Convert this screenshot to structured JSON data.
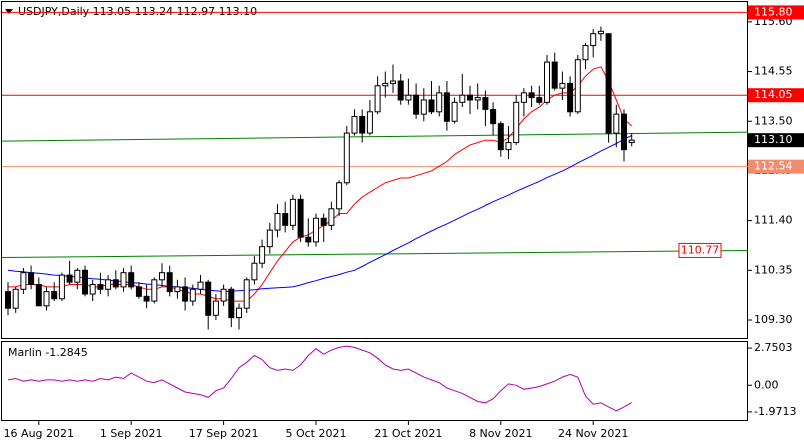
{
  "chart_data": [
    {
      "type": "candlestick",
      "title": "USDJPY,Daily  113.05 113.24 112.97 113.10",
      "categories": [
        null,
        null,
        null,
        null,
        "16 Aug 2021",
        null,
        null,
        null,
        null,
        null,
        null,
        null,
        null,
        null,
        null,
        null,
        "1 Sep 2021",
        null,
        null,
        null,
        null,
        null,
        null,
        null,
        null,
        null,
        null,
        null,
        "17 Sep 2021",
        null,
        null,
        null,
        null,
        null,
        null,
        null,
        null,
        null,
        null,
        null,
        "5 Oct 2021",
        null,
        null,
        null,
        null,
        null,
        null,
        null,
        null,
        null,
        null,
        null,
        "21 Oct 2021",
        null,
        null,
        null,
        null,
        null,
        null,
        null,
        null,
        null,
        null,
        null,
        "8 Nov 2021",
        null,
        null,
        null,
        null,
        null,
        null,
        null,
        null,
        null,
        null,
        null,
        "24 Nov 2021",
        null,
        null,
        null,
        null,
        null
      ],
      "open": [
        109.9,
        109.55,
        109.95,
        110.3,
        110.05,
        109.6,
        109.9,
        109.75,
        110.25,
        110.1,
        110.35,
        109.85,
        110.05,
        109.95,
        110.15,
        110.0,
        110.3,
        110.0,
        109.8,
        109.7,
        110.15,
        110.3,
        109.9,
        110.0,
        109.7,
        109.95,
        110.1,
        109.4,
        109.7,
        109.95,
        109.35,
        109.55,
        110.15,
        110.5,
        110.85,
        111.2,
        111.55,
        111.3,
        111.85,
        111.05,
        110.95,
        111.45,
        111.3,
        111.65,
        112.2,
        113.25,
        113.6,
        113.25,
        113.7,
        114.25,
        114.3,
        114.35,
        113.95,
        114.05,
        113.65,
        113.95,
        113.7,
        114.1,
        113.5,
        113.9,
        114.05,
        113.95,
        114.0,
        113.75,
        113.45,
        112.9,
        113.05,
        113.9,
        114.1,
        114.0,
        113.9,
        114.75,
        114.2,
        114.3,
        113.7,
        114.8,
        115.1,
        115.35,
        115.35,
        113.25,
        113.65,
        113.05
      ],
      "high": [
        110.1,
        110.0,
        110.4,
        110.45,
        110.2,
        110.0,
        110.1,
        110.3,
        110.55,
        110.4,
        110.45,
        110.15,
        110.3,
        110.25,
        110.35,
        110.4,
        110.45,
        110.1,
        110.05,
        110.2,
        110.5,
        110.45,
        110.15,
        110.2,
        110.05,
        110.25,
        110.15,
        109.85,
        110.05,
        110.0,
        109.65,
        110.2,
        110.65,
        111.0,
        111.35,
        111.75,
        111.8,
        111.95,
        111.95,
        111.45,
        111.55,
        111.55,
        111.8,
        112.25,
        113.4,
        113.75,
        113.75,
        113.95,
        114.45,
        114.55,
        114.7,
        114.5,
        114.4,
        114.3,
        114.2,
        114.35,
        114.25,
        114.35,
        114.0,
        114.5,
        114.25,
        114.3,
        114.15,
        113.9,
        113.5,
        113.4,
        114.05,
        114.2,
        114.25,
        114.25,
        114.9,
        114.95,
        114.55,
        114.45,
        114.9,
        115.15,
        115.45,
        115.5,
        115.35,
        113.85,
        113.75,
        113.24
      ],
      "low": [
        109.4,
        109.45,
        109.85,
        109.95,
        109.6,
        109.5,
        109.7,
        109.7,
        110.05,
        109.95,
        109.8,
        109.7,
        109.85,
        109.8,
        109.95,
        109.9,
        109.95,
        109.75,
        109.55,
        109.65,
        110.0,
        109.8,
        109.75,
        109.5,
        109.6,
        109.85,
        109.1,
        109.3,
        109.6,
        109.15,
        109.1,
        109.45,
        110.05,
        110.4,
        110.7,
        111.05,
        111.15,
        111.2,
        110.95,
        110.85,
        110.85,
        110.95,
        111.2,
        111.5,
        112.15,
        113.2,
        113.05,
        113.2,
        113.65,
        114.0,
        114.1,
        113.85,
        113.85,
        113.55,
        113.5,
        113.65,
        113.6,
        113.3,
        113.45,
        113.8,
        113.65,
        113.75,
        113.4,
        113.2,
        112.75,
        112.7,
        113.0,
        113.6,
        113.8,
        113.85,
        113.85,
        114.15,
        113.95,
        113.6,
        113.65,
        114.6,
        114.85,
        115.2,
        113.05,
        112.95,
        112.65,
        112.97
      ],
      "close": [
        109.55,
        109.95,
        110.3,
        110.05,
        109.6,
        109.9,
        109.75,
        110.25,
        110.1,
        110.35,
        109.85,
        110.05,
        109.95,
        110.15,
        110.0,
        110.3,
        110.0,
        109.8,
        109.7,
        110.15,
        110.3,
        109.9,
        110.0,
        109.7,
        109.95,
        110.1,
        109.4,
        109.7,
        109.95,
        109.35,
        109.55,
        110.15,
        110.5,
        110.85,
        111.2,
        111.55,
        111.3,
        111.85,
        111.05,
        110.95,
        111.45,
        111.3,
        111.65,
        112.2,
        113.25,
        113.6,
        113.25,
        113.7,
        114.25,
        114.3,
        114.35,
        113.95,
        114.05,
        113.65,
        113.95,
        113.7,
        114.1,
        113.5,
        113.9,
        114.05,
        113.95,
        114.0,
        113.75,
        113.45,
        112.9,
        113.05,
        113.9,
        114.1,
        114.0,
        113.9,
        114.75,
        114.2,
        114.3,
        113.7,
        114.8,
        115.1,
        115.35,
        115.4,
        113.25,
        113.65,
        112.9,
        113.1
      ],
      "lines": [
        {
          "color": "#ff0000",
          "values": [
            110.0,
            110.0,
            110.05,
            110.05,
            110.05,
            110.0,
            110.0,
            110.0,
            110.05,
            110.05,
            110.05,
            110.0,
            110.0,
            110.05,
            110.05,
            110.05,
            110.05,
            110.0,
            109.95,
            109.95,
            110.0,
            110.0,
            109.95,
            109.9,
            109.85,
            109.85,
            109.8,
            109.75,
            109.75,
            109.7,
            109.7,
            109.7,
            109.85,
            110.05,
            110.3,
            110.55,
            110.75,
            110.95,
            111.05,
            111.1,
            111.2,
            111.3,
            111.4,
            111.55,
            111.55,
            111.75,
            111.9,
            112.0,
            112.1,
            112.2,
            112.25,
            112.3,
            112.3,
            112.35,
            112.4,
            112.45,
            112.55,
            112.65,
            112.8,
            112.9,
            113.0,
            113.05,
            113.1,
            113.1,
            113.05,
            113.15,
            113.35,
            113.55,
            113.7,
            113.8,
            113.95,
            114.05,
            114.1,
            114.1,
            114.25,
            114.45,
            114.6,
            114.65,
            114.35,
            113.95,
            113.55,
            113.4
          ]
        },
        {
          "color": "#0000ff",
          "values": [
            110.35,
            110.33,
            110.32,
            110.3,
            110.29,
            110.27,
            110.25,
            110.24,
            110.22,
            110.21,
            110.19,
            110.17,
            110.16,
            110.14,
            110.13,
            110.11,
            110.09,
            110.08,
            110.06,
            110.05,
            110.03,
            110.01,
            110.0,
            109.98,
            109.97,
            109.95,
            109.93,
            109.92,
            109.9,
            109.91,
            109.92,
            109.93,
            109.94,
            109.96,
            109.97,
            109.98,
            109.99,
            110.0,
            110.04,
            110.09,
            110.13,
            110.18,
            110.22,
            110.26,
            110.31,
            110.35,
            110.43,
            110.52,
            110.6,
            110.68,
            110.77,
            110.85,
            110.93,
            111.02,
            111.1,
            111.18,
            111.26,
            111.33,
            111.41,
            111.49,
            111.57,
            111.64,
            111.72,
            111.8,
            111.87,
            111.94,
            112.02,
            112.09,
            112.16,
            112.23,
            112.31,
            112.38,
            112.45,
            112.53,
            112.62,
            112.7,
            112.78,
            112.87,
            112.95,
            113.03,
            113.12,
            113.2
          ]
        }
      ],
      "hlines": [
        {
          "value": 115.8,
          "label": "115.80",
          "color": "#ff0000"
        },
        {
          "value": 114.05,
          "label": "114.05",
          "color": "#ff0000"
        },
        {
          "value": 112.54,
          "label": "112.54",
          "color": "#f28c6e"
        }
      ],
      "trendlines": [
        {
          "values": [
            113.08,
            113.27
          ],
          "color": "#008000"
        },
        {
          "values": [
            110.62,
            110.77
          ],
          "color": "#008000",
          "label": "110.77",
          "label_color": "#ff0000"
        }
      ],
      "last_price": {
        "value": 113.1,
        "label": "113.10",
        "color": "#000000"
      },
      "ylim": [
        108.92,
        116.02
      ],
      "yticks": [
        {
          "value": 115.6,
          "label": "115.60"
        },
        114.55,
        {
          "value": 113.5,
          "label": "113.50"
        },
        112.45,
        {
          "value": 111.4,
          "label": "111.40"
        },
        110.35,
        {
          "value": 109.3,
          "label": "109.30"
        }
      ],
      "grid": false
    },
    {
      "type": "line",
      "title": "Marlin -1.2845",
      "color": "#b000b0",
      "values": [
        0.4,
        0.5,
        0.3,
        0.4,
        0.3,
        0.4,
        0.4,
        0.3,
        0.4,
        0.3,
        0.4,
        0.3,
        0.5,
        0.4,
        0.6,
        0.5,
        0.9,
        0.6,
        0.3,
        0.2,
        0.4,
        0.1,
        -0.2,
        -0.5,
        -0.6,
        -0.7,
        -0.9,
        -0.4,
        -0.2,
        0.5,
        1.3,
        1.7,
        2.2,
        1.9,
        1.3,
        1.1,
        1.2,
        1.1,
        1.5,
        2.2,
        2.7,
        2.3,
        2.6,
        2.8,
        2.9,
        2.8,
        2.6,
        2.4,
        2.0,
        1.5,
        1.2,
        1.1,
        1.2,
        0.9,
        0.6,
        0.4,
        0.2,
        -0.2,
        -0.4,
        -0.6,
        -0.9,
        -1.2,
        -1.3,
        -1.0,
        -0.4,
        0.1,
        0.0,
        -0.3,
        -0.2,
        -0.1,
        0.1,
        0.3,
        0.6,
        0.8,
        0.6,
        -0.8,
        -1.4,
        -1.3,
        -1.6,
        -1.9,
        -1.6,
        -1.2845
      ],
      "ylim": [
        -2.57,
        3.2
      ],
      "yticks": [
        2.7503,
        {
          "value": 0,
          "label": "0.00"
        },
        -1.9713
      ]
    }
  ]
}
